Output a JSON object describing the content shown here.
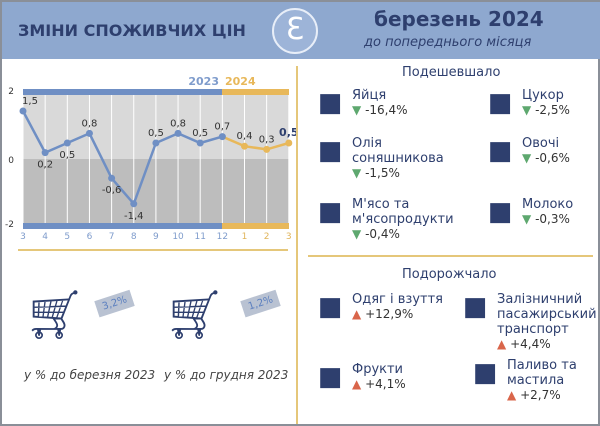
{
  "header": {
    "title": "ЗМІНИ СПОЖИВЧИХ ЦІН",
    "month": "березень 2024",
    "subtitle": "до попереднього місяця"
  },
  "chart_data": {
    "type": "line",
    "years": [
      "2023",
      "2024"
    ],
    "categories": [
      "3",
      "4",
      "5",
      "6",
      "7",
      "8",
      "9",
      "10",
      "11",
      "12",
      "1",
      "2",
      "3"
    ],
    "values": [
      1.5,
      0.2,
      0.5,
      0.8,
      -0.6,
      -1.4,
      0.5,
      0.8,
      0.5,
      0.7,
      0.4,
      0.3,
      0.5
    ],
    "labels": [
      "1,5",
      "0,2",
      "0,5",
      "0,8",
      "-0,6",
      "-1,4",
      "0,5",
      "0,8",
      "0,5",
      "0,7",
      "0,4",
      "0,3",
      "0,5"
    ],
    "yticks": [
      "2",
      "0",
      "-2"
    ],
    "ylim": [
      -2,
      2
    ],
    "colors": {
      "2023": "#6f8fc4",
      "2024": "#e8b85a"
    }
  },
  "summary": [
    {
      "value": "3,2%",
      "caption": "у % до березня 2023"
    },
    {
      "value": "1,2%",
      "caption": "у % до грудня 2023"
    }
  ],
  "cheaper": {
    "heading": "Подешевшало",
    "items": [
      {
        "name": "Яйця",
        "value": "-16,4%",
        "icon": "eggs-icon"
      },
      {
        "name": "Цукор",
        "value": "-2,5%",
        "icon": "sugar-icon"
      },
      {
        "name": "Олія соняшникова",
        "value": "-1,5%",
        "icon": "oil-icon"
      },
      {
        "name": "Овочі",
        "value": "-0,6%",
        "icon": "vegetables-icon"
      },
      {
        "name": "М'ясо та м'ясопродукти",
        "value": "-0,4%",
        "icon": "meat-icon"
      },
      {
        "name": "Молоко",
        "value": "-0,3%",
        "icon": "milk-icon"
      }
    ]
  },
  "pricier": {
    "heading": "Подорожчало",
    "items": [
      {
        "name": "Одяг і взуття",
        "value": "+12,9%",
        "icon": "clothes-icon"
      },
      {
        "name": "Залізничний пасажирський транспорт",
        "value": "+4,4%",
        "icon": "train-icon"
      },
      {
        "name": "Фрукти",
        "value": "+4,1%",
        "icon": "fruit-icon"
      },
      {
        "name": "Паливо та мастила",
        "value": "+2,7%",
        "icon": "fuel-icon"
      }
    ]
  }
}
